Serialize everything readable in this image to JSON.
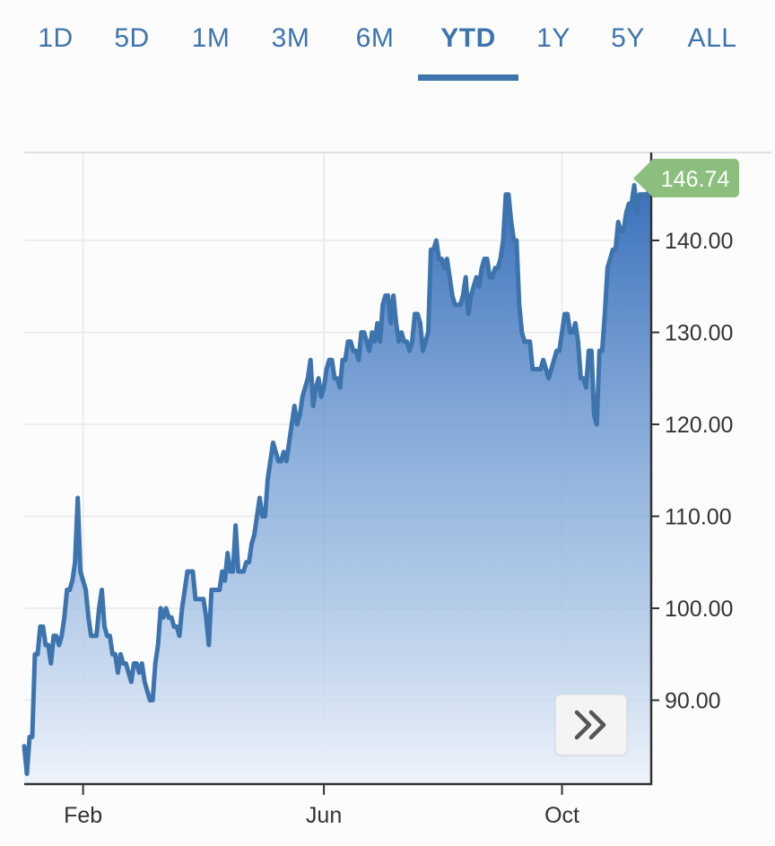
{
  "tabs": [
    {
      "label": "1D"
    },
    {
      "label": "5D"
    },
    {
      "label": "1M"
    },
    {
      "label": "3M"
    },
    {
      "label": "6M"
    },
    {
      "label": "YTD",
      "active": true
    },
    {
      "label": "1Y"
    },
    {
      "label": "5Y"
    },
    {
      "label": "ALL"
    }
  ],
  "colors": {
    "accent": "#3d74ad",
    "line": "#3d74ad",
    "last_price_badge": "#8cbf7e",
    "grid": "#e8e8e8",
    "axis_text": "#333333"
  },
  "nav_button": {
    "icon": "double-chevron-right-icon"
  },
  "chart_data": {
    "type": "area",
    "last_price_label": "146.74",
    "y_tick_labels": [
      "140.00",
      "130.00",
      "120.00",
      "110.00",
      "100.00",
      "90.00"
    ],
    "y_ticks": [
      140,
      130,
      120,
      110,
      100,
      90
    ],
    "x_tick_labels": [
      "Feb",
      "Jun",
      "Oct"
    ],
    "ylim": [
      81,
      150
    ],
    "x_range_index": [
      0,
      240
    ],
    "x_ticks_index": [
      22,
      112,
      201
    ],
    "grid": true,
    "series": [
      {
        "values": [
          85,
          82,
          86,
          86,
          95,
          95,
          98,
          98,
          96,
          96,
          94,
          97,
          97,
          96,
          97,
          99,
          102,
          102,
          103,
          105,
          112,
          104,
          103,
          102,
          99,
          97,
          97,
          97,
          100,
          102,
          98,
          97,
          97,
          95,
          95,
          93,
          95,
          94,
          94,
          93,
          92,
          94,
          94,
          93,
          94,
          92,
          91,
          90,
          90,
          94,
          96,
          100,
          99,
          100,
          99,
          99,
          98,
          98,
          97,
          100,
          102,
          104,
          104,
          104,
          101,
          101,
          101,
          101,
          99,
          96,
          102,
          102,
          102,
          102,
          104,
          103,
          106,
          104,
          104,
          109,
          104,
          104,
          104,
          105,
          105,
          107,
          108,
          110,
          112,
          110,
          110,
          114,
          116,
          118,
          117,
          116,
          116,
          117,
          116,
          118,
          120,
          122,
          120,
          121,
          123,
          124,
          125,
          127,
          122,
          124,
          125,
          123,
          124,
          126,
          127,
          127,
          125,
          125,
          124,
          127,
          127,
          129,
          129,
          128,
          128,
          127,
          130,
          130,
          129,
          128,
          130,
          129,
          131,
          129,
          133,
          134,
          134,
          131,
          134,
          131,
          129,
          130,
          129,
          129,
          128,
          129,
          132,
          132,
          131,
          128,
          129,
          130,
          139,
          139,
          140,
          138,
          138,
          137,
          138,
          136,
          134,
          133,
          133,
          133,
          134,
          136,
          132,
          134,
          135,
          136,
          135,
          137,
          138,
          138,
          136,
          136,
          137,
          137,
          138,
          140,
          145,
          145,
          142,
          140,
          140,
          133,
          130,
          129,
          129,
          129,
          126,
          126,
          126,
          126,
          127,
          126,
          125,
          126,
          127,
          128,
          128,
          130,
          132,
          132,
          130,
          130,
          131,
          129,
          125,
          125,
          124,
          128,
          128,
          121,
          120,
          128,
          128,
          132,
          137,
          138,
          139,
          139,
          142,
          141,
          141,
          143,
          144,
          144,
          146,
          143,
          145,
          145,
          145,
          145,
          146
        ]
      }
    ]
  }
}
